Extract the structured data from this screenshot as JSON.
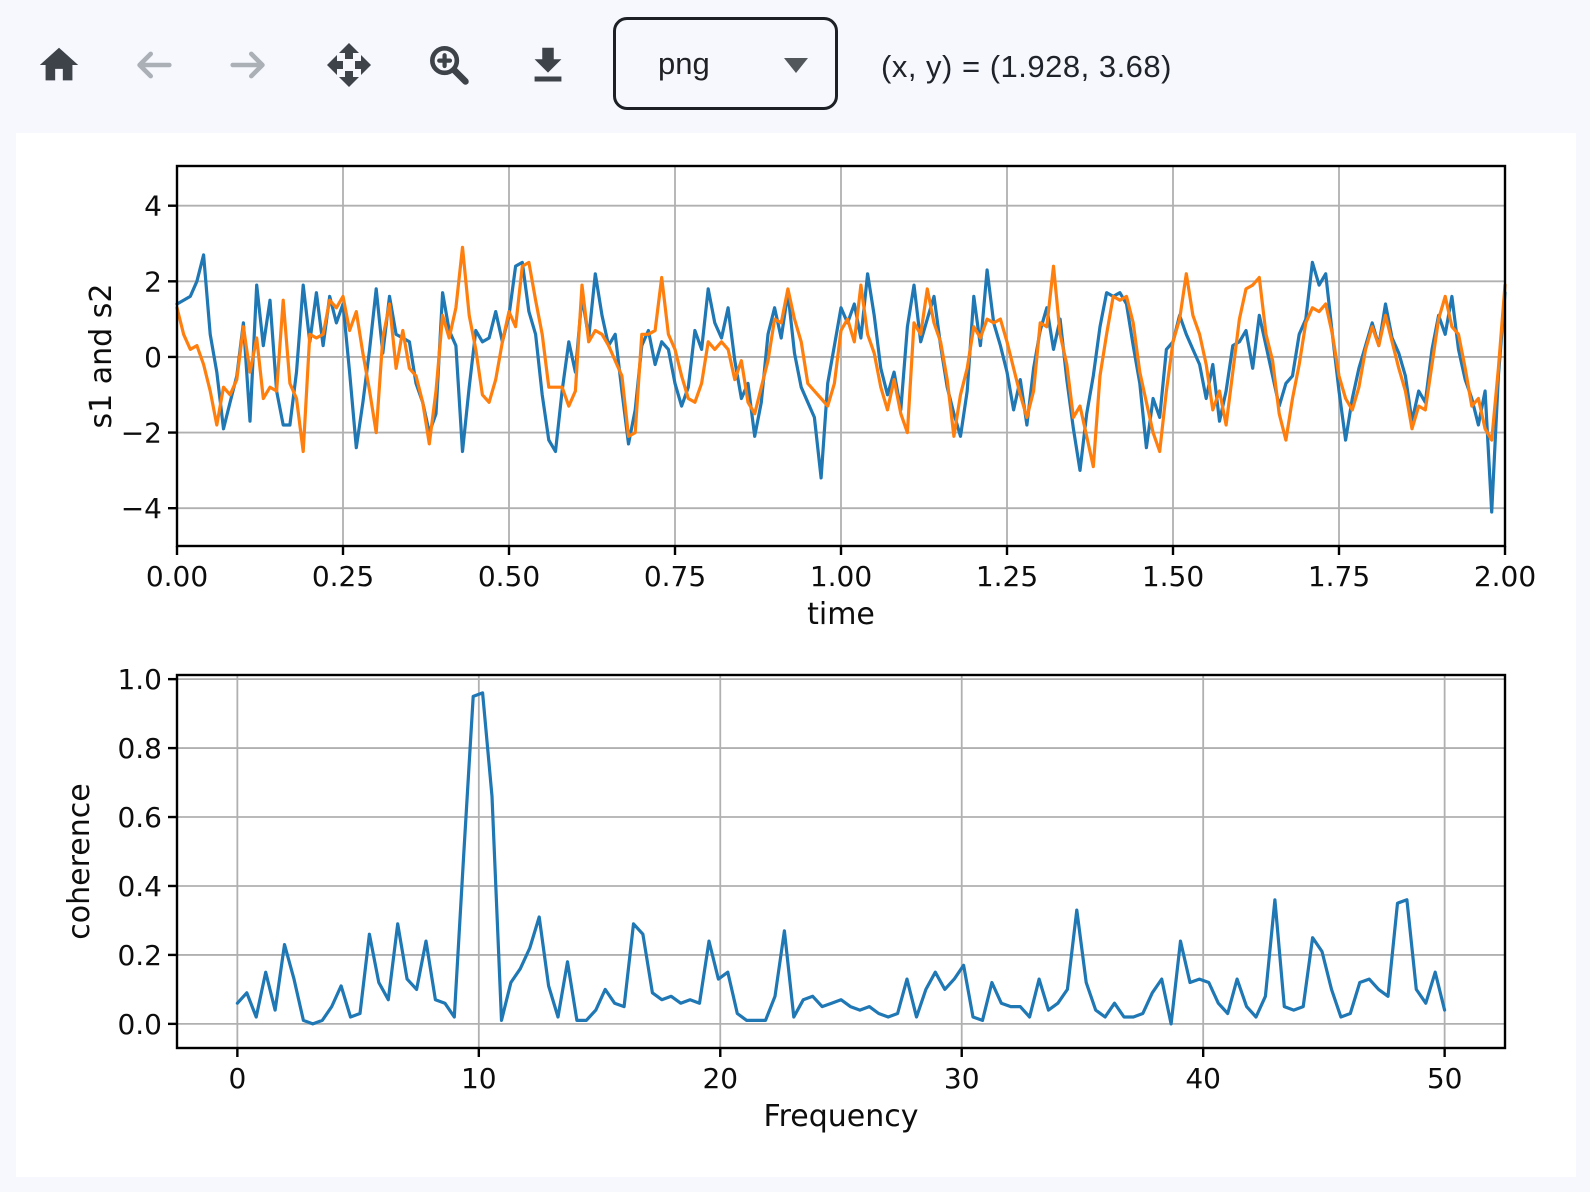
{
  "page": {
    "background": "#f6f8fe",
    "canvas_background": "#ffffff"
  },
  "toolbar": {
    "buttons": [
      {
        "icon": "home-icon",
        "name": "reset-view",
        "enabled": true
      },
      {
        "icon": "arrow-left-icon",
        "name": "back",
        "enabled": false
      },
      {
        "icon": "arrow-right-icon",
        "name": "forward",
        "enabled": false
      },
      {
        "icon": "pan-arrows-icon",
        "name": "pan",
        "enabled": true
      },
      {
        "icon": "zoom-plus-icon",
        "name": "zoom-to-rect",
        "enabled": true
      },
      {
        "icon": "download-icon",
        "name": "download",
        "enabled": true
      }
    ],
    "format_select": {
      "value": "png"
    },
    "coords_readout": "(x, y) = (1.928, 3.68)"
  },
  "colors": {
    "series_blue": "#1f77b4",
    "series_orange": "#ff7f0e",
    "grid": "#b0b0b0",
    "spine": "#000000",
    "icon_dark": "#3d4349",
    "icon_disabled": "#aab0b6"
  },
  "chart_data": [
    {
      "type": "line",
      "title": "",
      "xlabel": "time",
      "ylabel": "s1 and s2",
      "grid": true,
      "legend": "none",
      "xlim": [
        0,
        2
      ],
      "ylim": [
        -5.0,
        5.05
      ],
      "xticks": [
        0,
        0.25,
        0.5,
        0.75,
        1.0,
        1.25,
        1.5,
        1.75,
        2.0
      ],
      "xtick_labels": [
        "0.00",
        "0.25",
        "0.50",
        "0.75",
        "1.00",
        "1.25",
        "1.50",
        "1.75",
        "2.00"
      ],
      "yticks": [
        -4,
        -2,
        0,
        2,
        4
      ],
      "ytick_labels": [
        "−4",
        "−2",
        "0",
        "2",
        "4"
      ],
      "x_start": 0,
      "x_step": 0.01,
      "series": [
        {
          "name": "s1",
          "color": "#1f77b4",
          "values": [
            1.4,
            1.5,
            1.6,
            2.0,
            2.7,
            0.6,
            -0.4,
            -1.9,
            -1.2,
            -0.5,
            0.9,
            -1.7,
            1.9,
            0.3,
            1.5,
            -0.9,
            -1.8,
            -1.8,
            -0.4,
            1.9,
            0.4,
            1.7,
            0.3,
            1.6,
            0.9,
            1.4,
            -0.4,
            -2.4,
            -1.2,
            0.2,
            1.8,
            0.1,
            1.6,
            0.6,
            0.5,
            0.4,
            -0.7,
            -1.2,
            -2.0,
            -1.5,
            1.7,
            0.7,
            0.3,
            -2.5,
            -0.8,
            0.7,
            0.4,
            0.5,
            1.2,
            0.4,
            1.1,
            2.4,
            2.5,
            1.2,
            0.6,
            -1.0,
            -2.2,
            -2.5,
            -0.9,
            0.4,
            -0.4,
            1.6,
            0.5,
            2.2,
            1.1,
            0.3,
            0.6,
            -0.9,
            -2.3,
            -1.4,
            0.3,
            0.7,
            -0.2,
            0.4,
            0.2,
            -0.7,
            -1.3,
            -0.8,
            0.7,
            0.2,
            1.8,
            0.9,
            0.5,
            1.3,
            -0.1,
            -1.1,
            -0.7,
            -2.1,
            -1.2,
            0.6,
            1.3,
            0.5,
            1.7,
            0.1,
            -0.8,
            -1.2,
            -1.6,
            -3.2,
            -0.7,
            0.3,
            1.3,
            0.9,
            1.4,
            0.5,
            2.2,
            1.1,
            -0.3,
            -1.0,
            -0.4,
            -1.4,
            0.8,
            1.9,
            0.4,
            1.0,
            1.6,
            0.3,
            -0.8,
            -1.5,
            -2.1,
            -0.9,
            1.6,
            0.3,
            2.3,
            0.9,
            0.3,
            -0.4,
            -1.4,
            -0.6,
            -1.8,
            -0.3,
            0.7,
            1.3,
            0.2,
            1.0,
            -0.6,
            -1.9,
            -3.0,
            -1.5,
            -0.5,
            0.8,
            1.7,
            1.6,
            1.7,
            1.4,
            0.3,
            -0.7,
            -2.4,
            -1.1,
            -1.6,
            0.2,
            0.4,
            1.1,
            0.6,
            0.2,
            -0.2,
            -1.1,
            -0.2,
            -1.7,
            -0.9,
            0.3,
            0.4,
            0.7,
            -0.3,
            1.1,
            0.3,
            -0.5,
            -1.3,
            -0.7,
            -0.5,
            0.6,
            1.0,
            2.5,
            1.9,
            2.2,
            0.6,
            -0.9,
            -2.2,
            -1.1,
            -0.3,
            0.3,
            0.9,
            0.3,
            1.4,
            0.5,
            0.1,
            -0.5,
            -1.7,
            -0.9,
            -1.2,
            0.2,
            1.1,
            0.6,
            1.6,
            0.2,
            -0.6,
            -1.1,
            -1.8,
            -0.9,
            -4.1,
            -0.5,
            1.7
          ]
        },
        {
          "name": "s2",
          "color": "#ff7f0e",
          "values": [
            1.3,
            0.6,
            0.2,
            0.3,
            -0.2,
            -0.9,
            -1.8,
            -0.8,
            -1.0,
            -0.6,
            0.8,
            -0.4,
            0.5,
            -1.1,
            -0.8,
            -0.9,
            1.5,
            -0.7,
            -1.1,
            -2.5,
            0.6,
            0.5,
            0.6,
            1.5,
            1.3,
            1.6,
            0.7,
            1.2,
            0.1,
            -0.9,
            -2.0,
            0.5,
            1.4,
            -0.3,
            0.7,
            -0.3,
            -0.5,
            -1.2,
            -2.3,
            -0.9,
            1.1,
            0.5,
            1.3,
            2.9,
            1.1,
            0.2,
            -1.0,
            -1.2,
            -0.6,
            0.4,
            1.2,
            0.8,
            2.4,
            2.5,
            1.5,
            0.6,
            -0.8,
            -0.8,
            -0.8,
            -1.3,
            -0.9,
            1.9,
            0.4,
            0.7,
            0.6,
            0.3,
            -0.1,
            -0.5,
            -2.1,
            -2.0,
            0.6,
            0.6,
            0.7,
            2.1,
            0.6,
            0.2,
            -0.5,
            -1.1,
            -1.2,
            -0.7,
            0.4,
            0.2,
            0.4,
            0.2,
            -0.6,
            -0.1,
            -1.2,
            -1.5,
            -0.8,
            -0.1,
            1.0,
            0.9,
            1.8,
            1.0,
            0.4,
            -0.7,
            -0.9,
            -1.1,
            -1.3,
            -0.7,
            0.7,
            1.0,
            0.4,
            1.9,
            0.6,
            0.1,
            -0.8,
            -1.4,
            -0.6,
            -1.5,
            -2.0,
            0.9,
            0.6,
            1.8,
            0.9,
            0.4,
            -0.6,
            -2.1,
            -1.0,
            -0.3,
            0.8,
            0.5,
            1.0,
            0.9,
            1.0,
            0.4,
            -0.3,
            -1.0,
            -1.6,
            -0.9,
            0.9,
            0.8,
            2.4,
            0.6,
            -0.2,
            -1.6,
            -1.3,
            -2.1,
            -2.9,
            -0.5,
            0.6,
            1.6,
            1.5,
            1.6,
            0.9,
            -0.4,
            -1.2,
            -2.0,
            -2.5,
            -0.9,
            0.4,
            1.0,
            2.2,
            1.1,
            0.6,
            -0.2,
            -1.4,
            -0.9,
            -1.8,
            -0.4,
            1.0,
            1.8,
            1.9,
            2.1,
            0.6,
            -0.1,
            -1.5,
            -2.2,
            -1.1,
            -0.2,
            0.9,
            1.3,
            1.2,
            1.4,
            0.6,
            -0.5,
            -1.1,
            -1.4,
            -0.8,
            0.2,
            0.8,
            0.3,
            1.1,
            0.4,
            -0.3,
            -0.9,
            -1.9,
            -1.3,
            -1.4,
            -0.2,
            1.0,
            1.6,
            0.8,
            0.6,
            -0.3,
            -1.3,
            -1.1,
            -1.9,
            -2.2,
            -0.3,
            1.9
          ]
        }
      ]
    },
    {
      "type": "line",
      "title": "",
      "xlabel": "Frequency",
      "ylabel": "coherence",
      "grid": true,
      "legend": "none",
      "xlim": [
        -2.5,
        52.5
      ],
      "ylim": [
        -0.07,
        1.012
      ],
      "xticks": [
        0,
        10,
        20,
        30,
        40,
        50
      ],
      "xtick_labels": [
        "0",
        "10",
        "20",
        "30",
        "40",
        "50"
      ],
      "yticks": [
        0,
        0.2,
        0.4,
        0.6,
        0.8,
        1.0
      ],
      "ytick_labels": [
        "0.0",
        "0.2",
        "0.4",
        "0.6",
        "0.8",
        "1.0"
      ],
      "x_start": 0,
      "x_step": 0.390625,
      "series": [
        {
          "name": "coherence",
          "color": "#1f77b4",
          "values": [
            0.06,
            0.09,
            0.02,
            0.15,
            0.04,
            0.23,
            0.13,
            0.01,
            0.0,
            0.01,
            0.05,
            0.11,
            0.02,
            0.03,
            0.26,
            0.12,
            0.07,
            0.29,
            0.13,
            0.1,
            0.24,
            0.07,
            0.06,
            0.02,
            0.49,
            0.95,
            0.96,
            0.66,
            0.01,
            0.12,
            0.16,
            0.22,
            0.31,
            0.11,
            0.02,
            0.18,
            0.01,
            0.01,
            0.04,
            0.1,
            0.06,
            0.05,
            0.29,
            0.26,
            0.09,
            0.07,
            0.08,
            0.06,
            0.07,
            0.06,
            0.24,
            0.13,
            0.15,
            0.03,
            0.01,
            0.01,
            0.01,
            0.08,
            0.27,
            0.02,
            0.07,
            0.08,
            0.05,
            0.06,
            0.07,
            0.05,
            0.04,
            0.05,
            0.03,
            0.02,
            0.03,
            0.13,
            0.02,
            0.1,
            0.15,
            0.1,
            0.13,
            0.17,
            0.02,
            0.01,
            0.12,
            0.06,
            0.05,
            0.05,
            0.02,
            0.13,
            0.04,
            0.06,
            0.1,
            0.33,
            0.12,
            0.04,
            0.02,
            0.06,
            0.02,
            0.02,
            0.03,
            0.09,
            0.13,
            0.0,
            0.24,
            0.12,
            0.13,
            0.12,
            0.06,
            0.03,
            0.13,
            0.05,
            0.02,
            0.08,
            0.36,
            0.05,
            0.04,
            0.05,
            0.25,
            0.21,
            0.1,
            0.02,
            0.03,
            0.12,
            0.13,
            0.1,
            0.08,
            0.35,
            0.36,
            0.1,
            0.06,
            0.15,
            0.04
          ]
        }
      ]
    }
  ]
}
